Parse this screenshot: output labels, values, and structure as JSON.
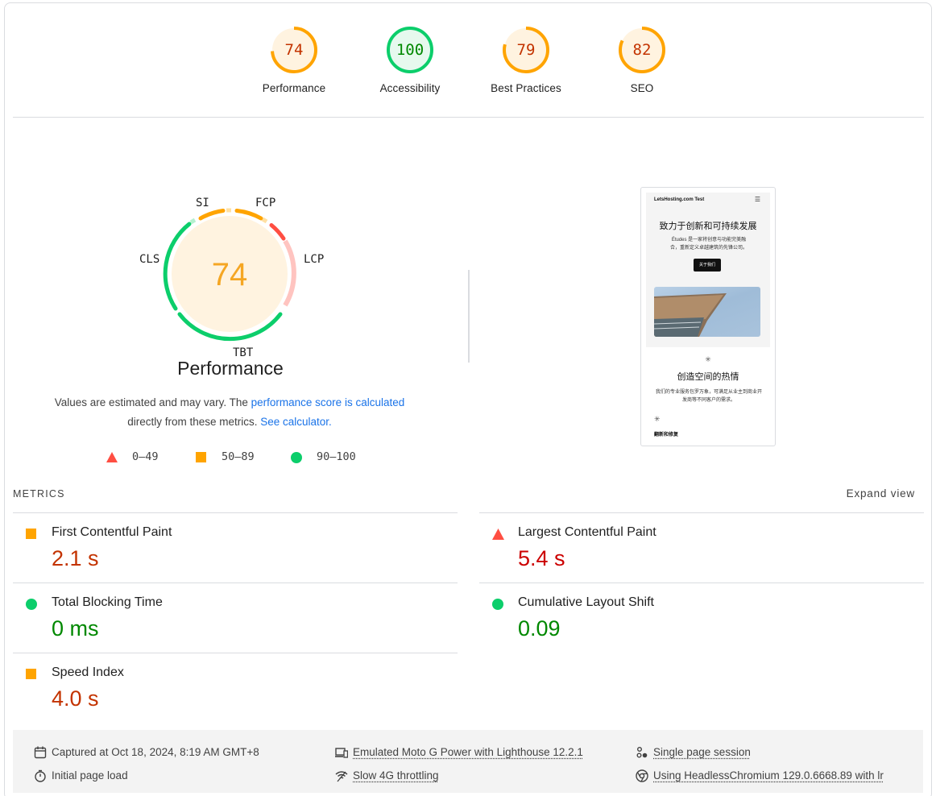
{
  "top_gauges": [
    {
      "score": "74",
      "label": "Performance",
      "status": "average"
    },
    {
      "score": "100",
      "label": "Accessibility",
      "status": "pass"
    },
    {
      "score": "79",
      "label": "Best Practices",
      "status": "average"
    },
    {
      "score": "82",
      "label": "SEO",
      "status": "average"
    }
  ],
  "perf": {
    "score": "74",
    "title": "Performance",
    "gauge_labels": {
      "si": "SI",
      "fcp": "FCP",
      "lcp": "LCP",
      "tbt": "TBT",
      "cls": "CLS"
    },
    "desc_prefix": "Values are estimated and may vary. The ",
    "desc_link": "performance score is calculated",
    "desc_mid": " directly from these metrics. ",
    "desc_link2": "See calculator.",
    "legend": {
      "fail": "0–49",
      "average": "50–89",
      "pass": "90–100"
    }
  },
  "screenshot": {
    "brand": "LetsHosting.com Test",
    "menu_icon": "hamburger-icon",
    "heading": "致力于创新和可持续发展",
    "para": "Études 是一家将创意与功能完美融合，重新定义卓越建筑的先锋公司。",
    "button": "关于我们",
    "star": "✳",
    "heading2": "创造空间的热情",
    "para2": "我们的专业服务包罗万象，可满足从业主到商业开发商等不同客户的需求。",
    "heading3": "翻新和修复"
  },
  "metrics": {
    "header": "METRICS",
    "expand": "Expand view",
    "items": [
      {
        "name": "First Contentful Paint",
        "value": "2.1 s",
        "status": "average"
      },
      {
        "name": "Largest Contentful Paint",
        "value": "5.4 s",
        "status": "fail"
      },
      {
        "name": "Total Blocking Time",
        "value": "0 ms",
        "status": "pass"
      },
      {
        "name": "Cumulative Layout Shift",
        "value": "0.09",
        "status": "pass"
      },
      {
        "name": "Speed Index",
        "value": "4.0 s",
        "status": "average"
      }
    ]
  },
  "footer": {
    "captured": "Captured at Oct 18, 2024, 8:19 AM GMT+8",
    "initial": "Initial page load",
    "device": "Emulated Moto G Power with Lighthouse 12.2.1",
    "throttle": "Slow 4G throttling",
    "session": "Single page session",
    "browser": "Using HeadlessChromium 129.0.6668.89 with lr"
  },
  "colors": {
    "pass": "#0cce6b",
    "average": "#ffa400",
    "fail": "#ff4e42",
    "pass_text": "#008800",
    "average_text": "#c33300",
    "fail_text": "#cc0000",
    "average_fill": "#fff3e0",
    "pass_fill": "#e6f9ee",
    "link": "#1a73e8"
  }
}
